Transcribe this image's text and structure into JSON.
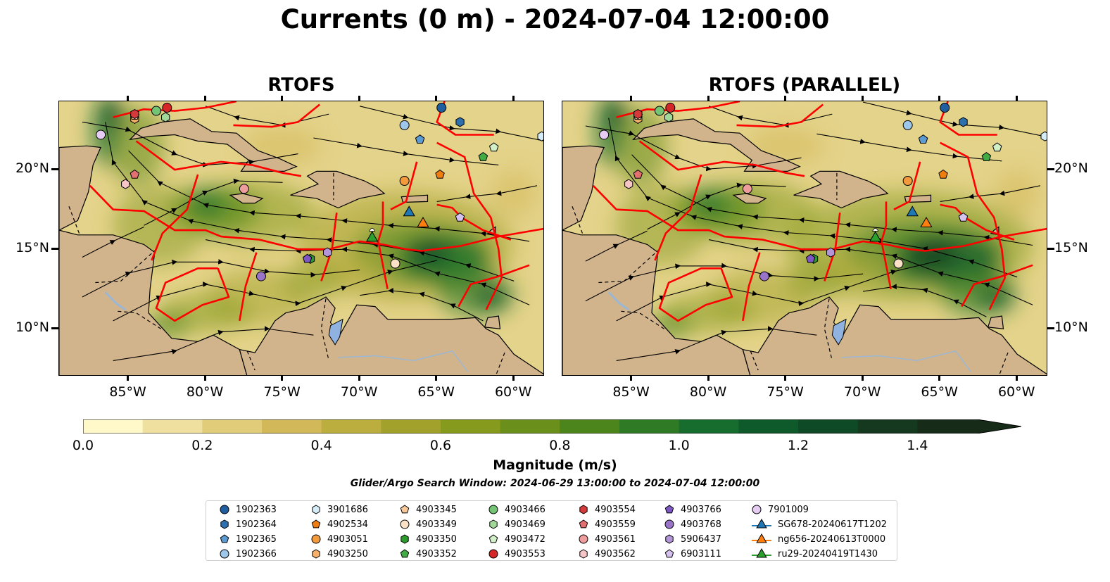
{
  "title": "Currents (0 m) - 2024-07-04 12:00:00",
  "panels": [
    {
      "title": "RTOFS"
    },
    {
      "title": "RTOFS (PARALLEL)"
    }
  ],
  "map_extent": {
    "lon_min": -89.5,
    "lon_max": -58.0,
    "lat_min": 7.0,
    "lat_max": 24.3
  },
  "lon_ticks": [
    "85°W",
    "80°W",
    "75°W",
    "70°W",
    "65°W",
    "60°W"
  ],
  "lon_tick_values": [
    -85,
    -80,
    -75,
    -70,
    -65,
    -60
  ],
  "lat_ticks": [
    "20°N",
    "15°N",
    "10°N"
  ],
  "lat_tick_values": [
    20,
    15,
    10
  ],
  "colors": {
    "land": "#d2b48c",
    "lake": "#8fb2e0",
    "river": "#9bb7d4",
    "eez_boundary": "#ff0000",
    "streamline": "#000000"
  },
  "colorbar": {
    "label": "Magnitude (m/s)",
    "min": 0.0,
    "max": 1.5,
    "extend": "max",
    "ticks": [
      "0.0",
      "0.2",
      "0.4",
      "0.6",
      "0.8",
      "1.0",
      "1.2",
      "1.4"
    ],
    "tick_values": [
      0.0,
      0.2,
      0.4,
      0.6,
      0.8,
      1.0,
      1.2,
      1.4
    ],
    "colors": [
      "#fff8c8",
      "#f0e0a0",
      "#e1cc7a",
      "#d2b858",
      "#bcae3e",
      "#a2a12c",
      "#869a1e",
      "#6a8f1a",
      "#4b851c",
      "#2f7a24",
      "#166d2e",
      "#0f5a2a",
      "#0f4a26",
      "#14391f",
      "#162c19"
    ]
  },
  "search_window": "Glider/Argo Search Window: 2024-06-29 13:00:00 to 2024-07-04 12:00:00",
  "legend": [
    {
      "label": "1902363",
      "marker": "circle",
      "color": "#1f5f9f"
    },
    {
      "label": "1902364",
      "marker": "hexagon",
      "color": "#2e6fae"
    },
    {
      "label": "1902365",
      "marker": "pentagon",
      "color": "#5c9bd1"
    },
    {
      "label": "1902366",
      "marker": "circle",
      "color": "#9ec6e8"
    },
    {
      "label": "3901686",
      "marker": "hexagon",
      "color": "#d4ecf8"
    },
    {
      "label": "4902534",
      "marker": "pentagon",
      "color": "#f07d10"
    },
    {
      "label": "4903051",
      "marker": "circle",
      "color": "#f39a3c"
    },
    {
      "label": "4903250",
      "marker": "hexagon",
      "color": "#f6b06a"
    },
    {
      "label": "4903345",
      "marker": "pentagon",
      "color": "#f8c898"
    },
    {
      "label": "4903349",
      "marker": "circle",
      "color": "#fbe1c6"
    },
    {
      "label": "4903350",
      "marker": "hexagon",
      "color": "#2c9a2c"
    },
    {
      "label": "4903352",
      "marker": "pentagon",
      "color": "#43ab43"
    },
    {
      "label": "4903466",
      "marker": "circle",
      "color": "#74c476"
    },
    {
      "label": "4903469",
      "marker": "hexagon",
      "color": "#a1d99b"
    },
    {
      "label": "4903472",
      "marker": "pentagon",
      "color": "#d2f0c8"
    },
    {
      "label": "4903553",
      "marker": "circle",
      "color": "#d62728"
    },
    {
      "label": "4903554",
      "marker": "hexagon",
      "color": "#d6393a"
    },
    {
      "label": "4903559",
      "marker": "pentagon",
      "color": "#e27070"
    },
    {
      "label": "4903561",
      "marker": "circle",
      "color": "#ee9c9c"
    },
    {
      "label": "4903562",
      "marker": "hexagon",
      "color": "#f6c6c6"
    },
    {
      "label": "4903766",
      "marker": "pentagon",
      "color": "#7e57c2"
    },
    {
      "label": "4903768",
      "marker": "circle",
      "color": "#9a74c9"
    },
    {
      "label": "5906437",
      "marker": "hexagon",
      "color": "#b396d8"
    },
    {
      "label": "6903111",
      "marker": "pentagon",
      "color": "#d5c2ee"
    },
    {
      "label": "7901009",
      "marker": "circle",
      "color": "#e6ccf5"
    },
    {
      "label": "SG678-20240617T1202",
      "marker": "triangle",
      "color": "#1f77b4"
    },
    {
      "label": "ng656-20240613T0000",
      "marker": "triangle",
      "color": "#ff7f0e"
    },
    {
      "label": "ru29-20240419T1430",
      "marker": "triangle",
      "color": "#2ca02c"
    }
  ],
  "floats": [
    {
      "id": "1902363",
      "lon": -64.7,
      "lat": 23.9
    },
    {
      "id": "1902364",
      "lon": -63.5,
      "lat": 23.0
    },
    {
      "id": "1902365",
      "lon": -66.1,
      "lat": 21.9
    },
    {
      "id": "1902366",
      "lon": -67.1,
      "lat": 22.8
    },
    {
      "id": "3901686",
      "lon": -58.2,
      "lat": 22.1
    },
    {
      "id": "4902534",
      "lon": -64.8,
      "lat": 19.7
    },
    {
      "id": "4903051",
      "lon": -67.1,
      "lat": 19.3
    },
    {
      "id": "4903250",
      "lon": -84.6,
      "lat": 23.2
    },
    {
      "id": "4903345",
      "lon": -84.6,
      "lat": 23.4
    },
    {
      "id": "4903349",
      "lon": -67.7,
      "lat": 14.1
    },
    {
      "id": "4903350",
      "lon": -73.2,
      "lat": 14.4
    },
    {
      "id": "4903352",
      "lon": -62.0,
      "lat": 20.8
    },
    {
      "id": "4903466",
      "lon": -83.2,
      "lat": 23.7
    },
    {
      "id": "4903469",
      "lon": -82.6,
      "lat": 23.3
    },
    {
      "id": "4903472",
      "lon": -61.3,
      "lat": 21.4
    },
    {
      "id": "4903553",
      "lon": -82.5,
      "lat": 23.9
    },
    {
      "id": "4903554",
      "lon": -84.6,
      "lat": 23.5
    },
    {
      "id": "4903559",
      "lon": -84.6,
      "lat": 19.7
    },
    {
      "id": "4903561",
      "lon": -77.5,
      "lat": 18.8
    },
    {
      "id": "4903562",
      "lon": -85.2,
      "lat": 19.1
    },
    {
      "id": "4903766",
      "lon": -73.4,
      "lat": 14.4
    },
    {
      "id": "4903768",
      "lon": -76.4,
      "lat": 13.3
    },
    {
      "id": "5906437",
      "lon": -72.1,
      "lat": 14.8
    },
    {
      "id": "6903111",
      "lon": -63.5,
      "lat": 17.0
    },
    {
      "id": "7901009",
      "lon": -86.8,
      "lat": 22.2
    }
  ],
  "gliders": [
    {
      "id": "SG678-20240617T1202",
      "lon": -66.8,
      "lat": 17.3
    },
    {
      "id": "ng656-20240613T0000",
      "lon": -65.9,
      "lat": 16.6
    },
    {
      "id": "ru29-20240419T1430",
      "lon": -69.2,
      "lat": 15.7
    }
  ]
}
